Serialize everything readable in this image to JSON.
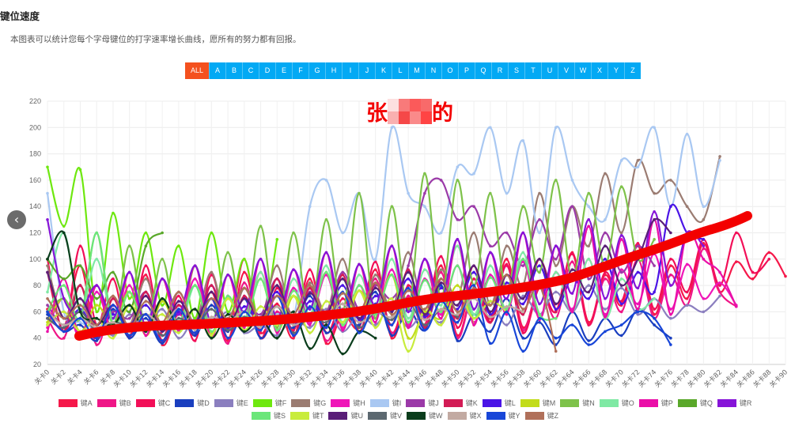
{
  "header": {
    "title": "键位速度",
    "subtitle": "本图表可以统计您每个字母键位的打字速率增长曲线，愿所有的努力都有回报。"
  },
  "filter_buttons": [
    "ALL",
    "A",
    "B",
    "C",
    "D",
    "E",
    "F",
    "G",
    "H",
    "I",
    "J",
    "K",
    "L",
    "M",
    "N",
    "O",
    "P",
    "Q",
    "R",
    "S",
    "T",
    "U",
    "V",
    "W",
    "X",
    "Y",
    "Z"
  ],
  "active_filter": "ALL",
  "annotation": {
    "text_start": "张",
    "text_end": "的",
    "color": "#f30000"
  },
  "nav": {
    "prev_icon": "‹"
  },
  "chart_data": {
    "type": "line",
    "x_label_prefix": "关卡",
    "xlim": [
      0,
      90
    ],
    "x_tick_step": 2,
    "x_step": 2,
    "ylim": [
      20,
      220
    ],
    "y_tick_step": 20,
    "grid": true,
    "legend": "bottom",
    "series": [
      {
        "name": "键A",
        "color": "#f5184a",
        "values": [
          62,
          48,
          95,
          40,
          70,
          45,
          88,
          35,
          60,
          42,
          75,
          38,
          90,
          44,
          66,
          40,
          85,
          36,
          58,
          48,
          92,
          40,
          70,
          50,
          95,
          42,
          78,
          55,
          100,
          48,
          80,
          60,
          105,
          52,
          88,
          65,
          110,
          58,
          95,
          70,
          112,
          75,
          98,
          85,
          105,
          87
        ]
      },
      {
        "name": "键B",
        "color": "#ef1687",
        "values": [
          55,
          40,
          80,
          35,
          65,
          42,
          75,
          38,
          58,
          44,
          70,
          36,
          82,
          40,
          60,
          46,
          78,
          38,
          62,
          50,
          85,
          44,
          72,
          48,
          90,
          40,
          76,
          52,
          95,
          46,
          80,
          55,
          98,
          50,
          85,
          60,
          100,
          55,
          88,
          65,
          108,
          75,
          64
        ]
      },
      {
        "name": "键C",
        "color": "#f20f58",
        "values": [
          100,
          45,
          110,
          50,
          85,
          40,
          95,
          42,
          72,
          38,
          88,
          45,
          100,
          40,
          78,
          46,
          92,
          44,
          70,
          50,
          98,
          42,
          80,
          55,
          102,
          48,
          85,
          52,
          96,
          44,
          78,
          60,
          104,
          50,
          90,
          68,
          112,
          62,
          100,
          75,
          115,
          80,
          120,
          90,
          100
        ]
      },
      {
        "name": "键D",
        "color": "#1a3fbf",
        "values": [
          58,
          45,
          50,
          38,
          62,
          40,
          55,
          36,
          60,
          42,
          65,
          45,
          70,
          40,
          58,
          48,
          72,
          44,
          60,
          50,
          75,
          42,
          62,
          46,
          80,
          38,
          58,
          45,
          70,
          40,
          52,
          35,
          60,
          38,
          55,
          42,
          62,
          50,
          40
        ]
      },
      {
        "name": "键E",
        "color": "#8b7fbf",
        "values": [
          50,
          60,
          45,
          55,
          42,
          58,
          46,
          62,
          40,
          55,
          48,
          60,
          44,
          50,
          42,
          56,
          48,
          62,
          45,
          58,
          50,
          65,
          48,
          60,
          52,
          70,
          55,
          68,
          50,
          72,
          58,
          75,
          60,
          80,
          62,
          78,
          58,
          70,
          55,
          65,
          60,
          72
        ]
      },
      {
        "name": "键F",
        "color": "#6ee80f",
        "values": [
          170,
          125,
          168,
          60,
          135,
          70,
          120,
          65,
          110,
          55,
          120,
          60,
          100,
          50,
          115
        ]
      },
      {
        "name": "键G",
        "color": "#9b7c72",
        "values": [
          95,
          55,
          80,
          45,
          70,
          50,
          85,
          48,
          75,
          52,
          90,
          46,
          78,
          55,
          95,
          50,
          82,
          60,
          100,
          55,
          88,
          62,
          105,
          58,
          92,
          70,
          120,
          65,
          110,
          80,
          150,
          95,
          140,
          110,
          165,
          120,
          175,
          150,
          160,
          140,
          130,
          178
        ]
      },
      {
        "name": "键H",
        "color": "#ef16b8",
        "values": [
          48,
          70,
          40,
          75,
          45,
          80,
          42,
          70,
          48,
          85,
          44,
          72,
          50,
          90,
          46,
          78,
          52,
          88,
          48,
          80,
          55,
          92,
          50,
          85,
          58,
          95,
          52,
          88,
          60,
          98,
          55,
          90,
          62,
          100,
          58,
          92,
          66,
          104,
          62,
          96,
          70,
          82,
          65
        ]
      },
      {
        "name": "键I",
        "color": "#a9c8f2",
        "values": [
          150,
          60,
          52,
          48,
          55,
          50,
          58,
          45,
          62,
          48,
          55,
          50,
          60,
          52,
          58,
          55,
          140,
          160,
          120,
          150,
          100,
          200,
          150,
          140,
          120,
          170,
          165,
          200,
          150,
          190,
          120,
          200,
          160,
          140,
          130,
          175,
          170,
          200,
          140,
          195,
          140,
          175
        ]
      },
      {
        "name": "键J",
        "color": "#9b3aa8",
        "values": [
          65,
          50,
          70,
          45,
          60,
          55,
          75,
          48,
          65,
          52,
          80,
          50,
          70,
          58,
          85,
          55,
          75,
          60,
          90,
          62,
          80,
          70,
          95,
          150,
          160,
          130,
          140,
          110,
          120,
          95,
          130,
          100,
          140,
          85,
          120,
          90,
          110,
          95
        ]
      },
      {
        "name": "键K",
        "color": "#d21b55",
        "values": [
          90,
          45,
          80,
          40,
          70,
          42,
          75,
          38,
          65,
          44,
          80,
          40,
          72,
          46,
          85,
          42,
          78,
          48,
          88,
          45,
          82,
          50,
          92,
          48,
          85,
          55,
          95,
          52,
          88,
          58,
          100,
          60
        ]
      },
      {
        "name": "键L",
        "color": "#4a14e6",
        "values": [
          55,
          48,
          62,
          45,
          58,
          50,
          65,
          46,
          60,
          52,
          70,
          48,
          64,
          55,
          75,
          50,
          68,
          58,
          80,
          54,
          72,
          60,
          85,
          56,
          78,
          62,
          90,
          58,
          82,
          66,
          95,
          62,
          86,
          70,
          100,
          66,
          90,
          75,
          140,
          120,
          115
        ]
      },
      {
        "name": "键M",
        "color": "#c2dc1a",
        "values": [
          52,
          70,
          45,
          65,
          50,
          75,
          42,
          68,
          48,
          80,
          44,
          70,
          52,
          85,
          46,
          72,
          55,
          90,
          50,
          76,
          58,
          88,
          40,
          60,
          55,
          80,
          50
        ]
      },
      {
        "name": "键N",
        "color": "#7ec24a",
        "values": [
          60,
          70,
          55,
          120,
          50,
          110,
          48,
          100,
          45,
          95,
          50,
          105,
          52,
          125,
          48,
          120,
          55,
          130,
          60,
          150,
          55,
          140,
          62,
          165,
          70,
          160,
          80,
          150,
          75,
          140,
          90,
          160,
          85,
          150,
          95,
          155,
          100,
          115
        ]
      },
      {
        "name": "键O",
        "color": "#7fe9a4",
        "values": [
          75,
          120,
          60,
          100,
          55,
          90,
          50,
          85,
          48,
          80,
          52,
          88,
          55,
          90,
          50,
          85,
          58,
          95,
          52,
          88,
          60,
          100,
          55,
          92,
          65,
          110,
          58,
          95,
          62,
          105,
          56,
          90,
          60,
          100,
          55,
          85,
          62,
          70
        ]
      },
      {
        "name": "键P",
        "color": "#ea0fa8",
        "values": [
          45,
          85,
          40,
          80,
          44,
          90,
          42,
          85,
          46,
          95,
          40,
          88,
          48,
          100,
          44,
          92,
          50,
          105,
          46,
          96,
          52,
          110,
          48,
          100,
          55,
          115,
          50,
          105,
          58,
          120,
          54,
          110,
          60,
          125,
          56,
          115,
          62,
          130,
          58,
          120,
          100,
          90,
          64
        ]
      },
      {
        "name": "键Q",
        "color": "#5aa82a",
        "values": [
          100,
          85,
          95,
          70,
          90,
          60,
          110,
          120
        ]
      },
      {
        "name": "键R",
        "color": "#8614d8",
        "values": [
          130,
          70,
          60,
          80,
          55,
          90,
          50,
          85,
          58,
          95,
          52,
          88,
          60,
          100,
          55,
          92,
          62,
          105,
          58,
          96,
          65,
          110,
          60,
          100,
          68,
          115,
          62,
          105,
          70,
          120,
          66,
          110,
          74,
          130,
          70,
          118,
          78,
          136,
          80,
          120,
          110
        ]
      },
      {
        "name": "键S",
        "color": "#6be67a",
        "values": [
          60,
          80,
          55,
          120,
          50,
          75,
          48,
          70,
          52,
          80,
          45,
          72,
          50,
          85,
          46,
          76,
          54,
          90,
          50,
          80,
          58,
          88,
          52,
          84,
          60,
          95,
          55,
          86,
          62,
          100,
          58,
          55
        ]
      },
      {
        "name": "键T",
        "color": "#c8ec3c",
        "values": [
          50,
          60,
          45,
          55,
          40,
          65,
          48,
          58,
          44,
          62,
          42,
          70,
          46,
          64,
          50,
          72,
          44,
          68,
          52,
          76,
          48,
          70,
          30,
          62,
          50,
          74,
          55,
          68,
          60
        ]
      },
      {
        "name": "键U",
        "color": "#5a1e78",
        "values": [
          90,
          55,
          70,
          50,
          65,
          48,
          72,
          45,
          68,
          52,
          75,
          50,
          70,
          55,
          80,
          52,
          74,
          58,
          85,
          55,
          78,
          60,
          90,
          58,
          82,
          65,
          95,
          60,
          88,
          70,
          100,
          66,
          92,
          75,
          110,
          80,
          100,
          130,
          120
        ]
      },
      {
        "name": "键V",
        "color": "#5c6870",
        "values": [
          55,
          48,
          60,
          45,
          52,
          50,
          58,
          42,
          55,
          48,
          62,
          46,
          56,
          50,
          64,
          44,
          58,
          52,
          66,
          48,
          60,
          54,
          68,
          50,
          62,
          56
        ]
      },
      {
        "name": "键W",
        "color": "#0a3d1c",
        "values": [
          100,
          120,
          60,
          55,
          50,
          65,
          45,
          70,
          48,
          62,
          40,
          58,
          45,
          55,
          40,
          60,
          32,
          50,
          28,
          45,
          40
        ]
      },
      {
        "name": "键X",
        "color": "#c2aaa2",
        "values": [
          60,
          50,
          55,
          48,
          52,
          45,
          58,
          50,
          62,
          46,
          56,
          52,
          60,
          48,
          64,
          50,
          58,
          54,
          66,
          52,
          60,
          56,
          68,
          54,
          62,
          58,
          70,
          56,
          64,
          60
        ]
      },
      {
        "name": "键Y",
        "color": "#1846d8",
        "values": [
          60,
          45,
          55,
          40,
          65,
          42,
          58,
          38,
          62,
          44,
          70,
          40,
          60,
          46,
          72,
          42,
          64,
          48,
          75,
          44,
          66,
          50,
          78,
          46,
          68,
          52,
          80,
          36,
          60,
          30,
          55,
          40,
          50,
          35,
          45,
          50,
          60,
          55,
          35
        ]
      },
      {
        "name": "键Z",
        "color": "#b0705a",
        "values": [
          70,
          55,
          65,
          50,
          72,
          48,
          68,
          52,
          75,
          50,
          70,
          55,
          78,
          52,
          72,
          58,
          80,
          55,
          74,
          60,
          82,
          58,
          76,
          62,
          85,
          60,
          78,
          65,
          88,
          62,
          80,
          30
        ]
      }
    ]
  }
}
